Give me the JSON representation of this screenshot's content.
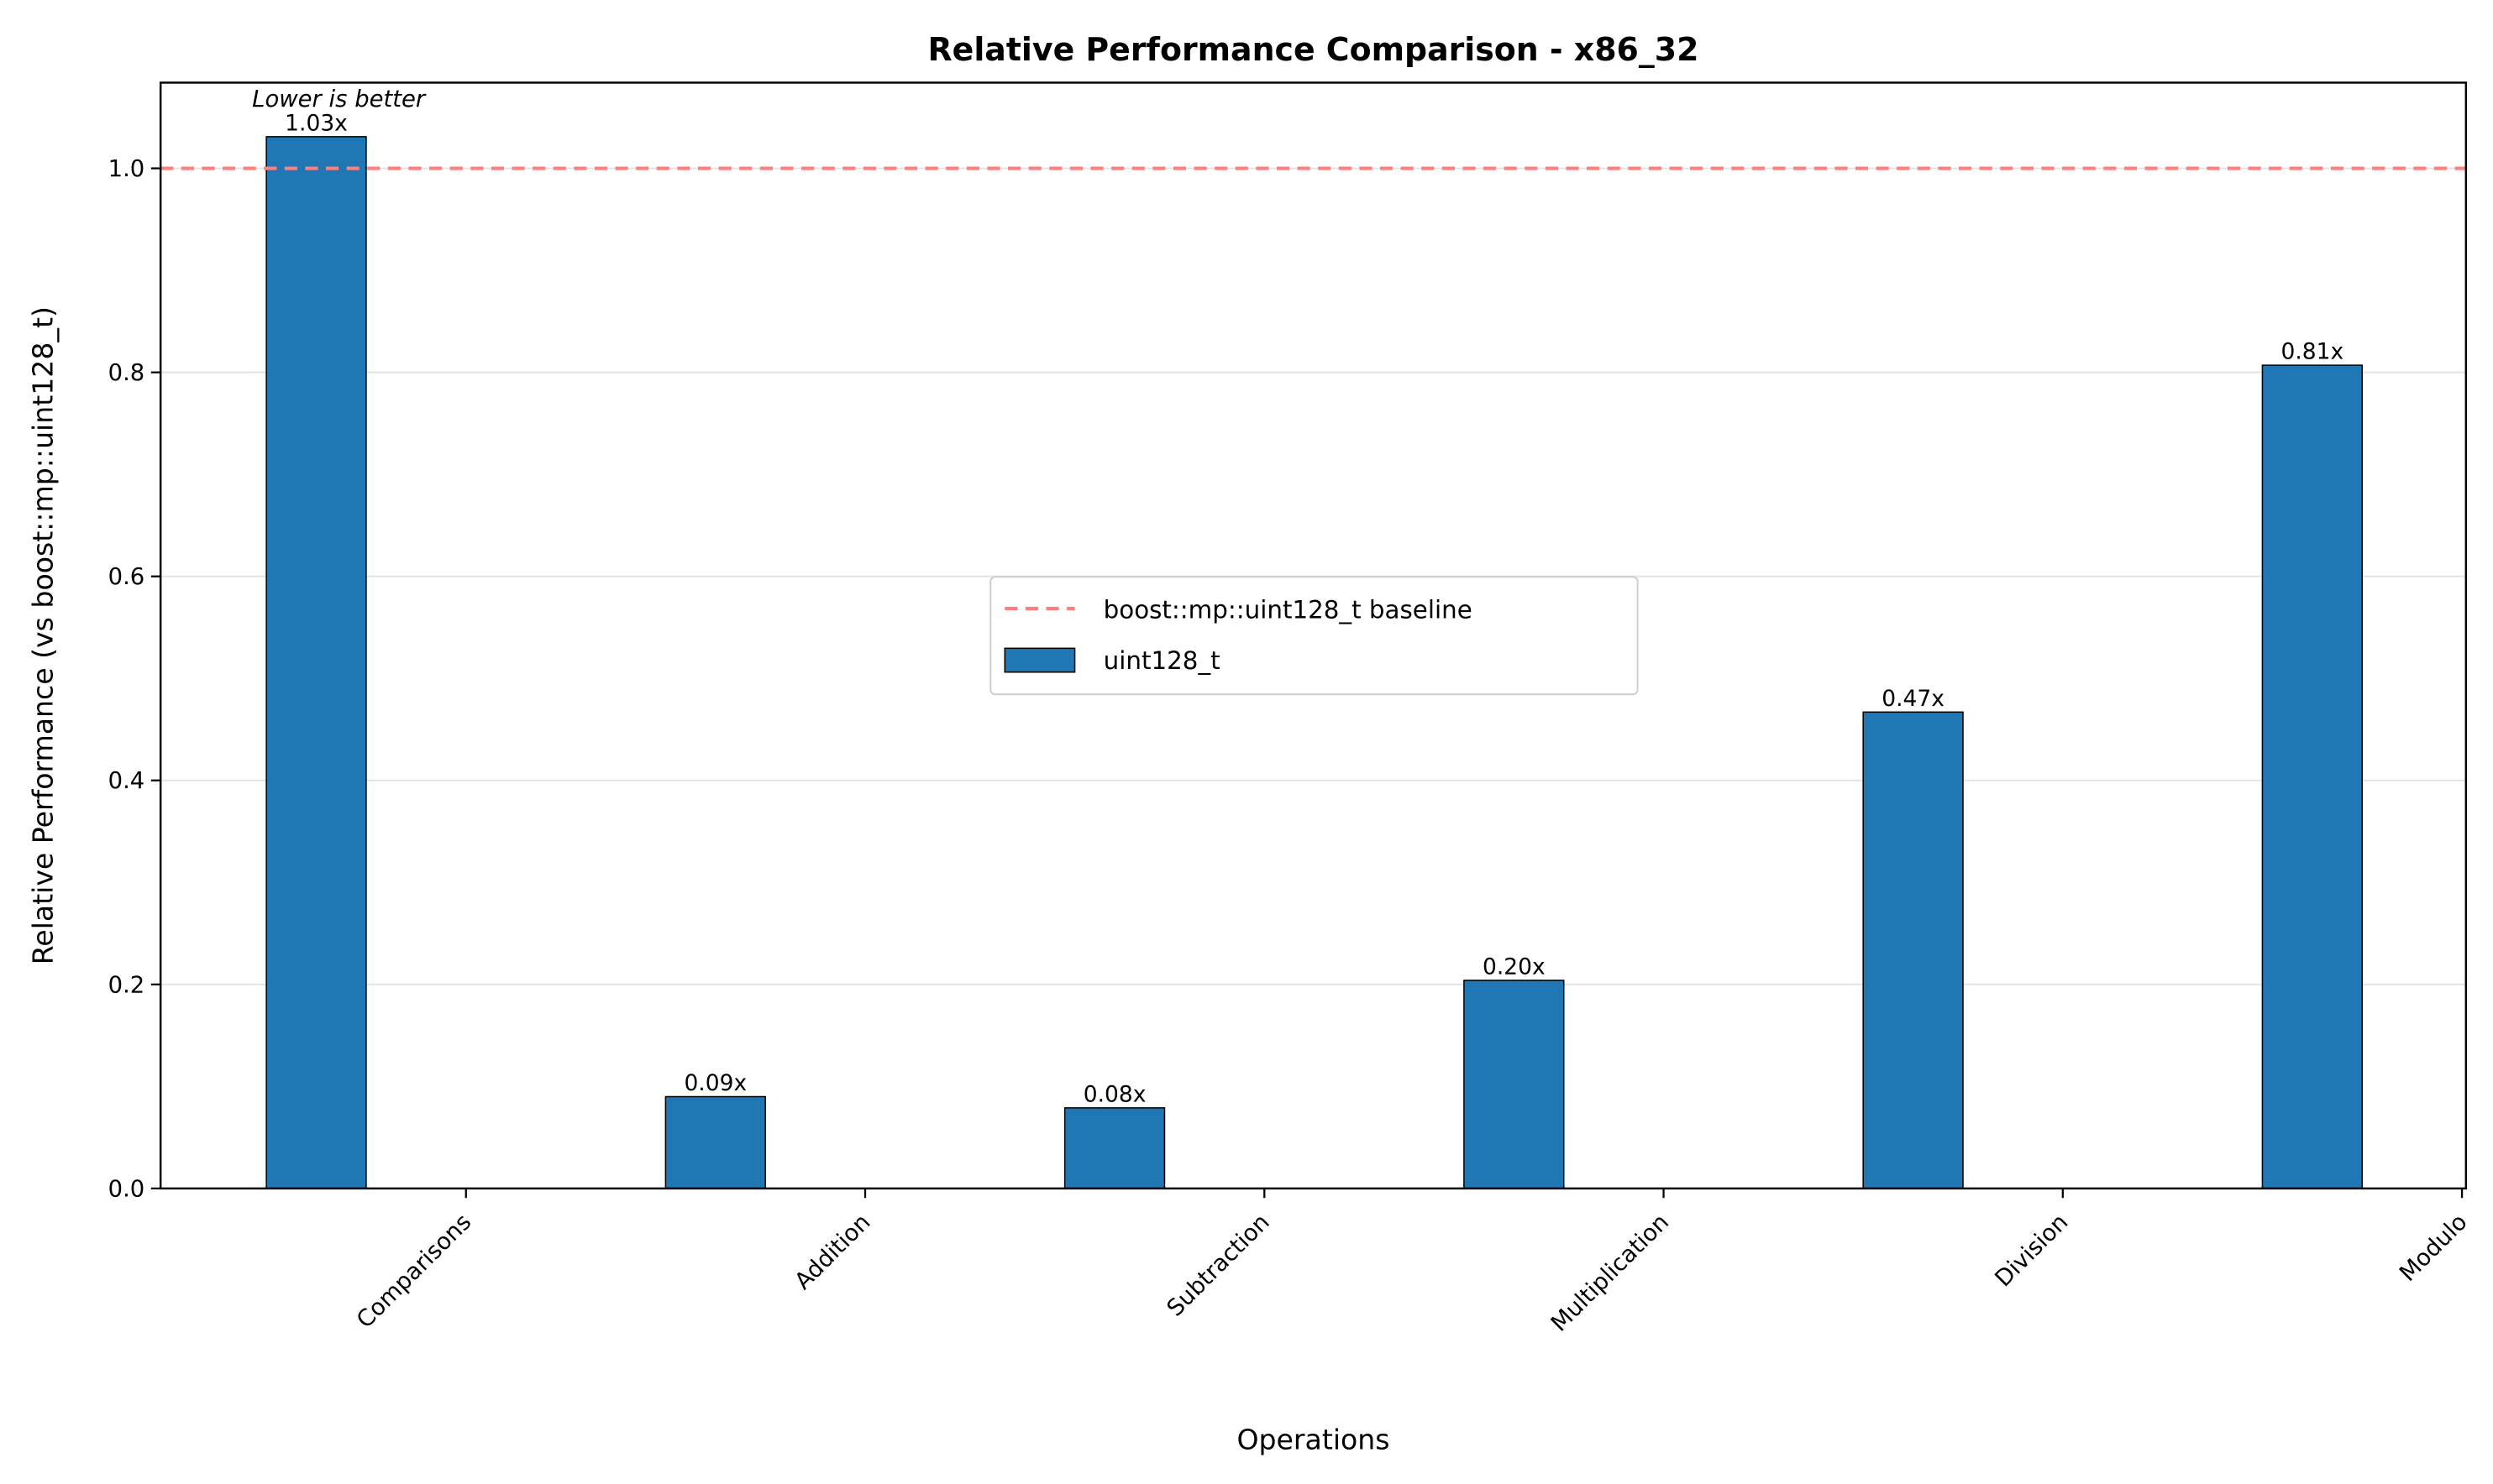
{
  "chart_data": {
    "type": "bar",
    "title": "Relative Performance Comparison - x86_32",
    "xlabel": "Operations",
    "ylabel": "Relative Performance (vs boost::mp::uint128_t)",
    "annotation": "Lower is better",
    "categories": [
      "Comparisons",
      "Addition",
      "Subtraction",
      "Multiplication",
      "Division",
      "Modulo"
    ],
    "series": [
      {
        "name": "uint128_t",
        "values": [
          1.031,
          0.09,
          0.079,
          0.204,
          0.467,
          0.807
        ],
        "labels": [
          "1.03x",
          "0.09x",
          "0.08x",
          "0.20x",
          "0.47x",
          "0.81x"
        ],
        "color": "#1f77b4"
      }
    ],
    "baseline": {
      "name": "boost::mp::uint128_t baseline",
      "value": 1.0,
      "color": "#ff7f7f",
      "style": "dashed"
    },
    "ylim": [
      0,
      1.084
    ],
    "yticks": [
      0.0,
      0.2,
      0.4,
      0.6,
      0.8,
      1.0
    ],
    "ytick_labels": [
      "0.0",
      "0.2",
      "0.4",
      "0.6",
      "0.8",
      "1.0"
    ],
    "grid": "y",
    "legend_placement": "center"
  }
}
